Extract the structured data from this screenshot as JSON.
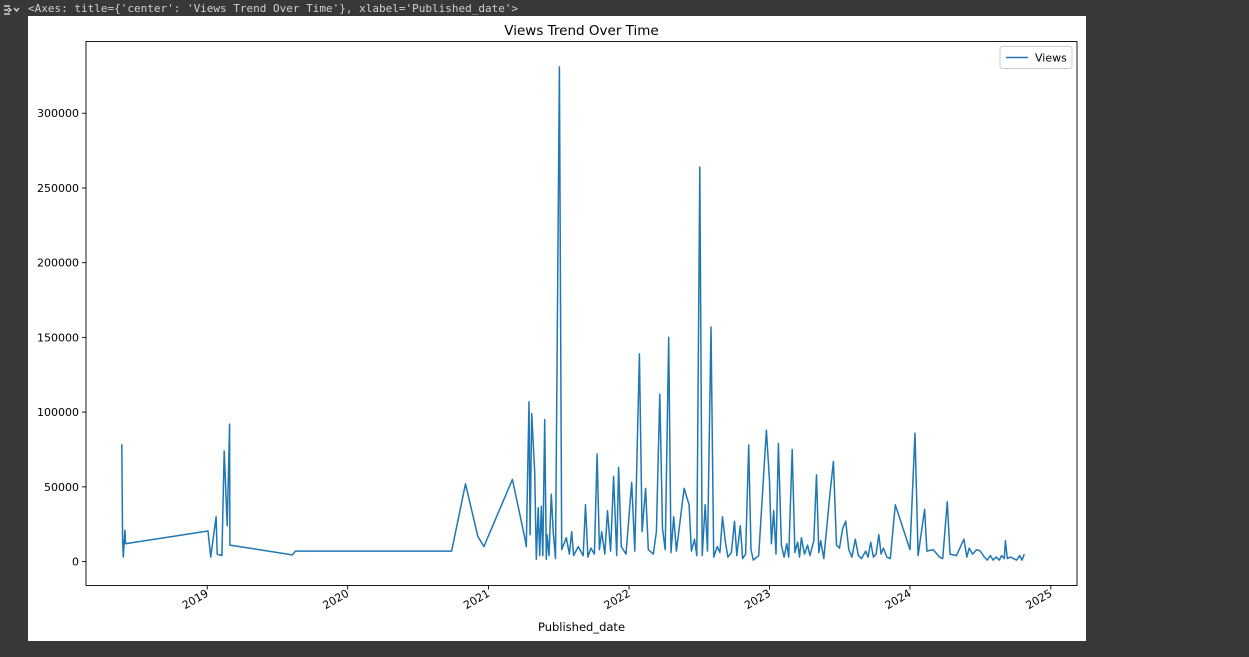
{
  "output_header": {
    "repr": "<Axes: title={'center': 'Views Trend Over Time'}, xlabel='Published_date'>"
  },
  "colors": {
    "page_background": "#383838",
    "figure_background": "#ffffff",
    "line": "#1f77b4"
  },
  "icons": [
    "output-toggle-icon"
  ],
  "chart_data": {
    "type": "line",
    "title": "Views Trend Over Time",
    "xlabel": "Published_date",
    "ylabel": "",
    "x_axis_type": "date",
    "xlim": [
      "2018-02-20",
      "2025-03-10"
    ],
    "ylim": [
      -16000,
      348000
    ],
    "x_ticks": [
      {
        "date": "2019-01-01",
        "label": "2019"
      },
      {
        "date": "2020-01-01",
        "label": "2020"
      },
      {
        "date": "2021-01-01",
        "label": "2021"
      },
      {
        "date": "2022-01-01",
        "label": "2022"
      },
      {
        "date": "2023-01-01",
        "label": "2023"
      },
      {
        "date": "2024-01-01",
        "label": "2024"
      },
      {
        "date": "2025-01-01",
        "label": "2025"
      }
    ],
    "y_ticks": [
      {
        "value": 0,
        "label": "0"
      },
      {
        "value": 50000,
        "label": "50000"
      },
      {
        "value": 100000,
        "label": "100000"
      },
      {
        "value": 150000,
        "label": "150000"
      },
      {
        "value": 200000,
        "label": "200000"
      },
      {
        "value": 250000,
        "label": "250000"
      },
      {
        "value": 300000,
        "label": "300000"
      }
    ],
    "grid": false,
    "legend": {
      "position": "top-right",
      "entries": [
        "Views"
      ]
    },
    "series": [
      {
        "name": "Views",
        "color": "#1f77b4",
        "points": [
          [
            "2018-05-24",
            78500
          ],
          [
            "2018-05-26",
            15000
          ],
          [
            "2018-05-28",
            3000
          ],
          [
            "2018-06-01",
            21000
          ],
          [
            "2018-06-03",
            12000
          ],
          [
            "2019-01-03",
            20500
          ],
          [
            "2019-01-10",
            3000
          ],
          [
            "2019-01-24",
            30000
          ],
          [
            "2019-01-27",
            5000
          ],
          [
            "2019-02-08",
            4000
          ],
          [
            "2019-02-14",
            74000
          ],
          [
            "2019-02-22",
            24000
          ],
          [
            "2019-02-28",
            92000
          ],
          [
            "2019-03-01",
            11000
          ],
          [
            "2019-08-10",
            4500
          ],
          [
            "2019-08-18",
            7000
          ],
          [
            "2020-09-27",
            7000
          ],
          [
            "2020-11-02",
            52000
          ],
          [
            "2020-12-04",
            17000
          ],
          [
            "2020-12-20",
            10000
          ],
          [
            "2021-03-04",
            55000
          ],
          [
            "2021-04-06",
            15000
          ],
          [
            "2021-04-09",
            10000
          ],
          [
            "2021-04-16",
            107000
          ],
          [
            "2021-04-19",
            18000
          ],
          [
            "2021-04-23",
            99000
          ],
          [
            "2021-05-01",
            60000
          ],
          [
            "2021-05-05",
            1500
          ],
          [
            "2021-05-10",
            36000
          ],
          [
            "2021-05-14",
            4000
          ],
          [
            "2021-05-18",
            37000
          ],
          [
            "2021-05-22",
            4000
          ],
          [
            "2021-05-27",
            95000
          ],
          [
            "2021-05-31",
            1500
          ],
          [
            "2021-06-02",
            18000
          ],
          [
            "2021-06-07",
            4000
          ],
          [
            "2021-06-13",
            45000
          ],
          [
            "2021-06-18",
            20000
          ],
          [
            "2021-06-24",
            2000
          ],
          [
            "2021-07-04",
            331000
          ],
          [
            "2021-07-10",
            8000
          ],
          [
            "2021-07-22",
            16000
          ],
          [
            "2021-07-30",
            5000
          ],
          [
            "2021-08-05",
            20000
          ],
          [
            "2021-08-10",
            4000
          ],
          [
            "2021-08-22",
            10000
          ],
          [
            "2021-09-04",
            4000
          ],
          [
            "2021-09-10",
            38000
          ],
          [
            "2021-09-16",
            3000
          ],
          [
            "2021-09-24",
            9000
          ],
          [
            "2021-10-03",
            5000
          ],
          [
            "2021-10-10",
            72000
          ],
          [
            "2021-10-16",
            8000
          ],
          [
            "2021-10-22",
            20000
          ],
          [
            "2021-10-30",
            5000
          ],
          [
            "2021-11-06",
            34000
          ],
          [
            "2021-11-14",
            7000
          ],
          [
            "2021-11-22",
            57000
          ],
          [
            "2021-11-30",
            4000
          ],
          [
            "2021-12-05",
            63000
          ],
          [
            "2021-12-12",
            10000
          ],
          [
            "2021-12-24",
            5000
          ],
          [
            "2022-01-08",
            53000
          ],
          [
            "2022-01-16",
            7000
          ],
          [
            "2022-01-28",
            139000
          ],
          [
            "2022-02-04",
            20000
          ],
          [
            "2022-02-13",
            49000
          ],
          [
            "2022-02-20",
            8000
          ],
          [
            "2022-03-05",
            5000
          ],
          [
            "2022-03-13",
            20000
          ],
          [
            "2022-03-22",
            112000
          ],
          [
            "2022-03-29",
            22000
          ],
          [
            "2022-04-05",
            8000
          ],
          [
            "2022-04-14",
            150000
          ],
          [
            "2022-04-20",
            6000
          ],
          [
            "2022-04-27",
            30000
          ],
          [
            "2022-05-04",
            7000
          ],
          [
            "2022-05-24",
            49000
          ],
          [
            "2022-06-06",
            38000
          ],
          [
            "2022-06-12",
            7000
          ],
          [
            "2022-06-20",
            15000
          ],
          [
            "2022-06-26",
            4000
          ],
          [
            "2022-07-04",
            264000
          ],
          [
            "2022-07-10",
            4000
          ],
          [
            "2022-07-18",
            38000
          ],
          [
            "2022-07-24",
            7000
          ],
          [
            "2022-08-02",
            157000
          ],
          [
            "2022-08-09",
            3000
          ],
          [
            "2022-08-18",
            10000
          ],
          [
            "2022-08-25",
            6000
          ],
          [
            "2022-09-01",
            30000
          ],
          [
            "2022-09-08",
            14000
          ],
          [
            "2022-09-15",
            3000
          ],
          [
            "2022-09-24",
            6000
          ],
          [
            "2022-10-02",
            27000
          ],
          [
            "2022-10-08",
            4000
          ],
          [
            "2022-10-17",
            24000
          ],
          [
            "2022-10-23",
            2000
          ],
          [
            "2022-10-31",
            5000
          ],
          [
            "2022-11-08",
            78000
          ],
          [
            "2022-11-14",
            8000
          ],
          [
            "2022-11-20",
            1000
          ],
          [
            "2022-12-04",
            4000
          ],
          [
            "2022-12-24",
            88000
          ],
          [
            "2023-01-01",
            54000
          ],
          [
            "2023-01-06",
            12000
          ],
          [
            "2023-01-12",
            34000
          ],
          [
            "2023-01-18",
            5000
          ],
          [
            "2023-01-24",
            79000
          ],
          [
            "2023-02-01",
            11000
          ],
          [
            "2023-02-08",
            3000
          ],
          [
            "2023-02-15",
            12000
          ],
          [
            "2023-02-20",
            3000
          ],
          [
            "2023-03-01",
            75000
          ],
          [
            "2023-03-08",
            6000
          ],
          [
            "2023-03-15",
            13000
          ],
          [
            "2023-03-20",
            3000
          ],
          [
            "2023-03-25",
            16000
          ],
          [
            "2023-04-02",
            5000
          ],
          [
            "2023-04-10",
            11000
          ],
          [
            "2023-04-16",
            4000
          ],
          [
            "2023-04-26",
            14000
          ],
          [
            "2023-05-03",
            58000
          ],
          [
            "2023-05-09",
            6000
          ],
          [
            "2023-05-14",
            14000
          ],
          [
            "2023-05-22",
            2000
          ],
          [
            "2023-06-07",
            45000
          ],
          [
            "2023-06-16",
            67000
          ],
          [
            "2023-06-24",
            11000
          ],
          [
            "2023-07-02",
            9000
          ],
          [
            "2023-07-10",
            22000
          ],
          [
            "2023-07-18",
            27000
          ],
          [
            "2023-07-26",
            8000
          ],
          [
            "2023-08-03",
            3000
          ],
          [
            "2023-08-12",
            15000
          ],
          [
            "2023-08-20",
            4000
          ],
          [
            "2023-08-28",
            2000
          ],
          [
            "2023-09-08",
            7000
          ],
          [
            "2023-09-14",
            3000
          ],
          [
            "2023-09-21",
            13000
          ],
          [
            "2023-09-28",
            3000
          ],
          [
            "2023-10-05",
            5000
          ],
          [
            "2023-10-12",
            18000
          ],
          [
            "2023-10-18",
            5000
          ],
          [
            "2023-10-24",
            9000
          ],
          [
            "2023-11-02",
            3000
          ],
          [
            "2023-11-11",
            2000
          ],
          [
            "2023-11-24",
            38000
          ],
          [
            "2024-01-01",
            8000
          ],
          [
            "2024-01-14",
            86000
          ],
          [
            "2024-01-22",
            4000
          ],
          [
            "2024-02-08",
            35000
          ],
          [
            "2024-02-14",
            7000
          ],
          [
            "2024-03-01",
            8000
          ],
          [
            "2024-03-18",
            3000
          ],
          [
            "2024-03-26",
            2000
          ],
          [
            "2024-04-07",
            40000
          ],
          [
            "2024-04-14",
            5000
          ],
          [
            "2024-05-01",
            4000
          ],
          [
            "2024-05-20",
            15000
          ],
          [
            "2024-05-28",
            3000
          ],
          [
            "2024-06-03",
            9000
          ],
          [
            "2024-06-12",
            5000
          ],
          [
            "2024-06-22",
            8000
          ],
          [
            "2024-07-02",
            7000
          ],
          [
            "2024-07-12",
            3000
          ],
          [
            "2024-07-20",
            1000
          ],
          [
            "2024-07-28",
            4000
          ],
          [
            "2024-08-04",
            1000
          ],
          [
            "2024-08-12",
            3000
          ],
          [
            "2024-08-20",
            1000
          ],
          [
            "2024-08-26",
            4000
          ],
          [
            "2024-09-02",
            2000
          ],
          [
            "2024-09-05",
            14000
          ],
          [
            "2024-09-10",
            2000
          ],
          [
            "2024-09-18",
            3000
          ],
          [
            "2024-09-26",
            2000
          ],
          [
            "2024-10-04",
            1000
          ],
          [
            "2024-10-12",
            4000
          ],
          [
            "2024-10-18",
            1000
          ],
          [
            "2024-10-24",
            5000
          ]
        ]
      }
    ]
  }
}
